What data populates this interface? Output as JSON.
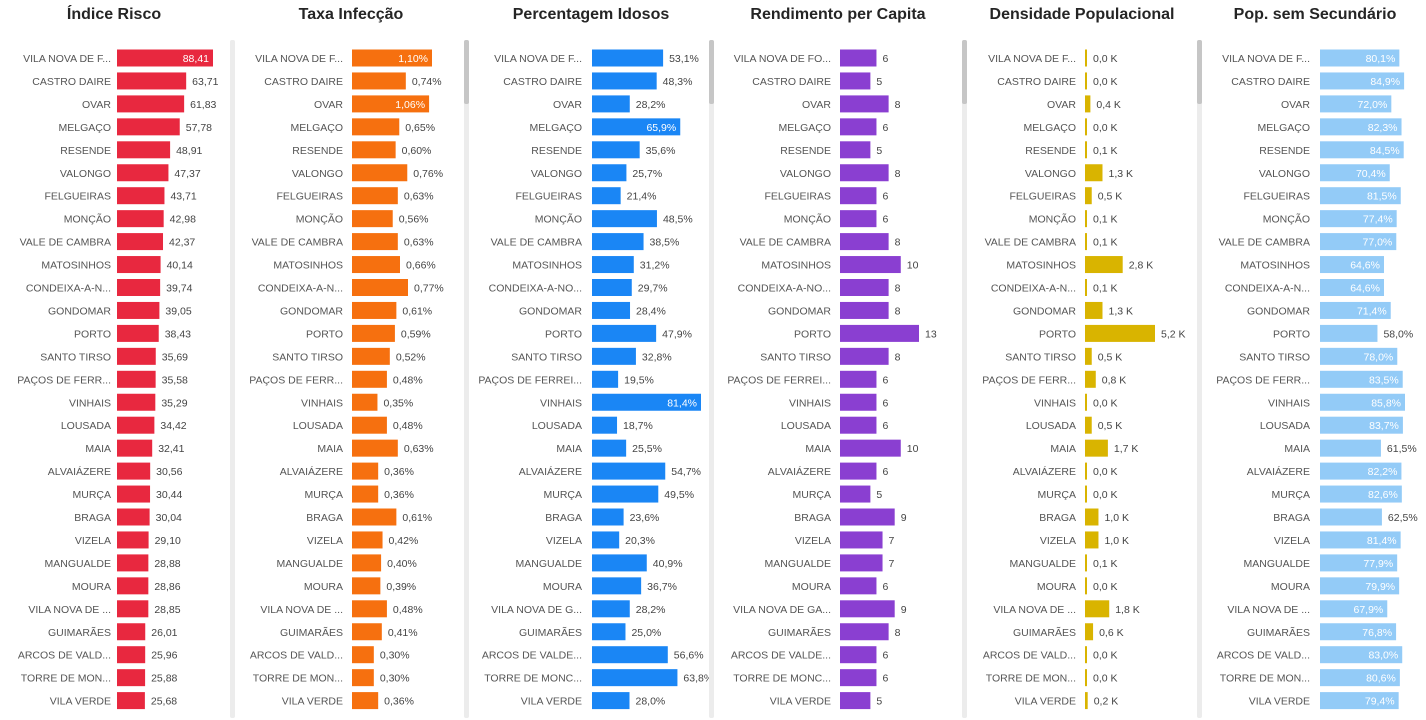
{
  "chart_data": [
    {
      "type": "bar",
      "orientation": "horizontal",
      "title": "Índice Risco",
      "color": "#e8283f",
      "inside_label_color": "#ffffff",
      "categories": [
        "VILA NOVA DE F...",
        "CASTRO DAIRE",
        "OVAR",
        "MELGAÇO",
        "RESENDE",
        "VALONGO",
        "FELGUEIRAS",
        "MONÇÃO",
        "VALE DE CAMBRA",
        "MATOSINHOS",
        "CONDEIXA-A-N...",
        "GONDOMAR",
        "PORTO",
        "SANTO TIRSO",
        "PAÇOS DE FERR...",
        "VINHAIS",
        "LOUSADA",
        "MAIA",
        "ALVAIÁZERE",
        "MURÇA",
        "BRAGA",
        "VIZELA",
        "MANGUALDE",
        "MOURA",
        "VILA NOVA DE ...",
        "GUIMARÃES",
        "ARCOS DE VALD...",
        "TORRE DE MON...",
        "VILA VERDE"
      ],
      "values": [
        88.41,
        63.71,
        61.83,
        57.78,
        48.91,
        47.37,
        43.71,
        42.98,
        42.37,
        40.14,
        39.74,
        39.05,
        38.43,
        35.69,
        35.58,
        35.29,
        34.42,
        32.41,
        30.56,
        30.44,
        30.04,
        29.1,
        28.88,
        28.86,
        28.85,
        26.01,
        25.96,
        25.88,
        25.68
      ],
      "labels": [
        "88,41",
        "63,71",
        "61,83",
        "57,78",
        "48,91",
        "47,37",
        "43,71",
        "42,98",
        "42,37",
        "40,14",
        "39,74",
        "39,05",
        "38,43",
        "35,69",
        "35,58",
        "35,29",
        "34,42",
        "32,41",
        "30,56",
        "30,44",
        "30,04",
        "29,10",
        "28,88",
        "28,86",
        "28,85",
        "26,01",
        "25,96",
        "25,88",
        "25,68"
      ],
      "label_inside": [
        true,
        false,
        false,
        false,
        false,
        false,
        false,
        false,
        false,
        false,
        false,
        false,
        false,
        false,
        false,
        false,
        false,
        false,
        false,
        false,
        false,
        false,
        false,
        false,
        false,
        false,
        false,
        false,
        false
      ],
      "scrollbar": false
    },
    {
      "type": "bar",
      "orientation": "horizontal",
      "title": "Taxa Infecção",
      "color": "#f6700f",
      "inside_label_color": "#ffffff",
      "categories": [
        "VILA NOVA DE F...",
        "CASTRO DAIRE",
        "OVAR",
        "MELGAÇO",
        "RESENDE",
        "VALONGO",
        "FELGUEIRAS",
        "MONÇÃO",
        "VALE DE CAMBRA",
        "MATOSINHOS",
        "CONDEIXA-A-N...",
        "GONDOMAR",
        "PORTO",
        "SANTO TIRSO",
        "PAÇOS DE FERR...",
        "VINHAIS",
        "LOUSADA",
        "MAIA",
        "ALVAIÁZERE",
        "MURÇA",
        "BRAGA",
        "VIZELA",
        "MANGUALDE",
        "MOURA",
        "VILA NOVA DE ...",
        "GUIMARÃES",
        "ARCOS DE VALD...",
        "TORRE DE MON...",
        "VILA VERDE"
      ],
      "values": [
        1.1,
        0.74,
        1.06,
        0.65,
        0.6,
        0.76,
        0.63,
        0.56,
        0.63,
        0.66,
        0.77,
        0.61,
        0.59,
        0.52,
        0.48,
        0.35,
        0.48,
        0.63,
        0.36,
        0.36,
        0.61,
        0.42,
        0.4,
        0.39,
        0.48,
        0.41,
        0.3,
        0.3,
        0.36
      ],
      "labels": [
        "1,10%",
        "0,74%",
        "1,06%",
        "0,65%",
        "0,60%",
        "0,76%",
        "0,63%",
        "0,56%",
        "0,63%",
        "0,66%",
        "0,77%",
        "0,61%",
        "0,59%",
        "0,52%",
        "0,48%",
        "0,35%",
        "0,48%",
        "0,63%",
        "0,36%",
        "0,36%",
        "0,61%",
        "0,42%",
        "0,40%",
        "0,39%",
        "0,48%",
        "0,41%",
        "0,30%",
        "0,30%",
        "0,36%"
      ],
      "label_inside": [
        true,
        false,
        true,
        false,
        false,
        false,
        false,
        false,
        false,
        false,
        false,
        false,
        false,
        false,
        false,
        false,
        false,
        false,
        false,
        false,
        false,
        false,
        false,
        false,
        false,
        false,
        false,
        false,
        false
      ],
      "scrollbar": true
    },
    {
      "type": "bar",
      "orientation": "horizontal",
      "title": "Percentagem Idosos",
      "color": "#1a86f5",
      "inside_label_color": "#ffffff",
      "categories": [
        "VILA NOVA DE F...",
        "CASTRO DAIRE",
        "OVAR",
        "MELGAÇO",
        "RESENDE",
        "VALONGO",
        "FELGUEIRAS",
        "MONÇÃO",
        "VALE DE CAMBRA",
        "MATOSINHOS",
        "CONDEIXA-A-NO...",
        "GONDOMAR",
        "PORTO",
        "SANTO TIRSO",
        "PAÇOS DE FERREI...",
        "VINHAIS",
        "LOUSADA",
        "MAIA",
        "ALVAIÁZERE",
        "MURÇA",
        "BRAGA",
        "VIZELA",
        "MANGUALDE",
        "MOURA",
        "VILA NOVA DE G...",
        "GUIMARÃES",
        "ARCOS DE VALDE...",
        "TORRE DE MONC...",
        "VILA VERDE"
      ],
      "values": [
        53.1,
        48.3,
        28.2,
        65.9,
        35.6,
        25.7,
        21.4,
        48.5,
        38.5,
        31.2,
        29.7,
        28.4,
        47.9,
        32.8,
        19.5,
        81.4,
        18.7,
        25.5,
        54.7,
        49.5,
        23.6,
        20.3,
        40.9,
        36.7,
        28.2,
        25.0,
        56.6,
        63.8,
        28.0
      ],
      "labels": [
        "53,1%",
        "48,3%",
        "28,2%",
        "65,9%",
        "35,6%",
        "25,7%",
        "21,4%",
        "48,5%",
        "38,5%",
        "31,2%",
        "29,7%",
        "28,4%",
        "47,9%",
        "32,8%",
        "19,5%",
        "81,4%",
        "18,7%",
        "25,5%",
        "54,7%",
        "49,5%",
        "23,6%",
        "20,3%",
        "40,9%",
        "36,7%",
        "28,2%",
        "25,0%",
        "56,6%",
        "63,8%",
        "28,0%"
      ],
      "label_inside": [
        false,
        false,
        false,
        true,
        false,
        false,
        false,
        false,
        false,
        false,
        false,
        false,
        false,
        false,
        false,
        true,
        false,
        false,
        false,
        false,
        false,
        false,
        false,
        false,
        false,
        false,
        false,
        false,
        false
      ],
      "scrollbar": true
    },
    {
      "type": "bar",
      "orientation": "horizontal",
      "title": "Rendimento per Capita",
      "color": "#8a3fd1",
      "inside_label_color": "#ffffff",
      "categories": [
        "VILA NOVA DE FO...",
        "CASTRO DAIRE",
        "OVAR",
        "MELGAÇO",
        "RESENDE",
        "VALONGO",
        "FELGUEIRAS",
        "MONÇÃO",
        "VALE DE CAMBRA",
        "MATOSINHOS",
        "CONDEIXA-A-NO...",
        "GONDOMAR",
        "PORTO",
        "SANTO TIRSO",
        "PAÇOS DE FERREI...",
        "VINHAIS",
        "LOUSADA",
        "MAIA",
        "ALVAIÁZERE",
        "MURÇA",
        "BRAGA",
        "VIZELA",
        "MANGUALDE",
        "MOURA",
        "VILA NOVA DE GA...",
        "GUIMARÃES",
        "ARCOS DE VALDE...",
        "TORRE DE MONC...",
        "VILA VERDE"
      ],
      "values": [
        6,
        5,
        8,
        6,
        5,
        8,
        6,
        6,
        8,
        10,
        8,
        8,
        13,
        8,
        6,
        6,
        6,
        10,
        6,
        5,
        9,
        7,
        7,
        6,
        9,
        8,
        6,
        6,
        5
      ],
      "labels": [
        "6",
        "5",
        "8",
        "6",
        "5",
        "8",
        "6",
        "6",
        "8",
        "10",
        "8",
        "8",
        "13",
        "8",
        "6",
        "6",
        "6",
        "10",
        "6",
        "5",
        "9",
        "7",
        "7",
        "6",
        "9",
        "8",
        "6",
        "6",
        "5"
      ],
      "label_inside": [
        false,
        false,
        false,
        false,
        false,
        false,
        false,
        false,
        false,
        false,
        false,
        false,
        false,
        false,
        false,
        false,
        false,
        false,
        false,
        false,
        false,
        false,
        false,
        false,
        false,
        false,
        false,
        false,
        false
      ],
      "scrollbar": true
    },
    {
      "type": "bar",
      "orientation": "horizontal",
      "title": "Densidade Populacional",
      "color": "#d9b400",
      "inside_label_color": "#ffffff",
      "categories": [
        "VILA NOVA DE F...",
        "CASTRO DAIRE",
        "OVAR",
        "MELGAÇO",
        "RESENDE",
        "VALONGO",
        "FELGUEIRAS",
        "MONÇÃO",
        "VALE DE CAMBRA",
        "MATOSINHOS",
        "CONDEIXA-A-N...",
        "GONDOMAR",
        "PORTO",
        "SANTO TIRSO",
        "PAÇOS DE FERR...",
        "VINHAIS",
        "LOUSADA",
        "MAIA",
        "ALVAIÁZERE",
        "MURÇA",
        "BRAGA",
        "VIZELA",
        "MANGUALDE",
        "MOURA",
        "VILA NOVA DE ...",
        "GUIMARÃES",
        "ARCOS DE VALD...",
        "TORRE DE MON...",
        "VILA VERDE"
      ],
      "values": [
        0.0,
        0.0,
        0.4,
        0.0,
        0.1,
        1.3,
        0.5,
        0.1,
        0.1,
        2.8,
        0.1,
        1.3,
        5.2,
        0.5,
        0.8,
        0.0,
        0.5,
        1.7,
        0.0,
        0.0,
        1.0,
        1.0,
        0.1,
        0.0,
        1.8,
        0.6,
        0.0,
        0.0,
        0.2
      ],
      "labels": [
        "0,0 K",
        "0,0 K",
        "0,4 K",
        "0,0 K",
        "0,1 K",
        "1,3 K",
        "0,5 K",
        "0,1 K",
        "0,1 K",
        "2,8 K",
        "0,1 K",
        "1,3 K",
        "5,2 K",
        "0,5 K",
        "0,8 K",
        "0,0 K",
        "0,5 K",
        "1,7 K",
        "0,0 K",
        "0,0 K",
        "1,0 K",
        "1,0 K",
        "0,1 K",
        "0,0 K",
        "1,8 K",
        "0,6 K",
        "0,0 K",
        "0,0 K",
        "0,2 K"
      ],
      "label_inside": [
        false,
        false,
        false,
        false,
        false,
        false,
        false,
        false,
        false,
        false,
        false,
        false,
        false,
        false,
        false,
        false,
        false,
        false,
        false,
        false,
        false,
        false,
        false,
        false,
        false,
        false,
        false,
        false,
        false
      ],
      "scrollbar": true
    },
    {
      "type": "bar",
      "orientation": "horizontal",
      "title": "Pop. sem Secundário",
      "color": "#93cbf7",
      "inside_label_color": "#ffffff",
      "categories": [
        "VILA NOVA DE F...",
        "CASTRO DAIRE",
        "OVAR",
        "MELGAÇO",
        "RESENDE",
        "VALONGO",
        "FELGUEIRAS",
        "MONÇÃO",
        "VALE DE CAMBRA",
        "MATOSINHOS",
        "CONDEIXA-A-N...",
        "GONDOMAR",
        "PORTO",
        "SANTO TIRSO",
        "PAÇOS DE FERR...",
        "VINHAIS",
        "LOUSADA",
        "MAIA",
        "ALVAIÁZERE",
        "MURÇA",
        "BRAGA",
        "VIZELA",
        "MANGUALDE",
        "MOURA",
        "VILA NOVA DE ...",
        "GUIMARÃES",
        "ARCOS DE VALD...",
        "TORRE DE MON...",
        "VILA VERDE"
      ],
      "values": [
        80.1,
        84.9,
        72.0,
        82.3,
        84.5,
        70.4,
        81.5,
        77.4,
        77.0,
        64.6,
        64.6,
        71.4,
        58.0,
        78.0,
        83.5,
        85.8,
        83.7,
        61.5,
        82.2,
        82.6,
        62.5,
        81.4,
        77.9,
        79.9,
        67.9,
        76.8,
        83.0,
        80.6,
        79.4
      ],
      "labels": [
        "80,1%",
        "84,9%",
        "72,0%",
        "82,3%",
        "84,5%",
        "70,4%",
        "81,5%",
        "77,4%",
        "77,0%",
        "64,6%",
        "64,6%",
        "71,4%",
        "58,0%",
        "78,0%",
        "83,5%",
        "85,8%",
        "83,7%",
        "61,5%",
        "82,2%",
        "82,6%",
        "62,5%",
        "81,4%",
        "77,9%",
        "79,9%",
        "67,9%",
        "76,8%",
        "83,0%",
        "80,6%",
        "79,4%"
      ],
      "label_inside": [
        true,
        true,
        true,
        true,
        true,
        true,
        true,
        true,
        true,
        true,
        true,
        true,
        false,
        true,
        true,
        true,
        true,
        false,
        true,
        true,
        false,
        true,
        true,
        true,
        true,
        true,
        true,
        true,
        true
      ],
      "scrollbar": true
    }
  ]
}
